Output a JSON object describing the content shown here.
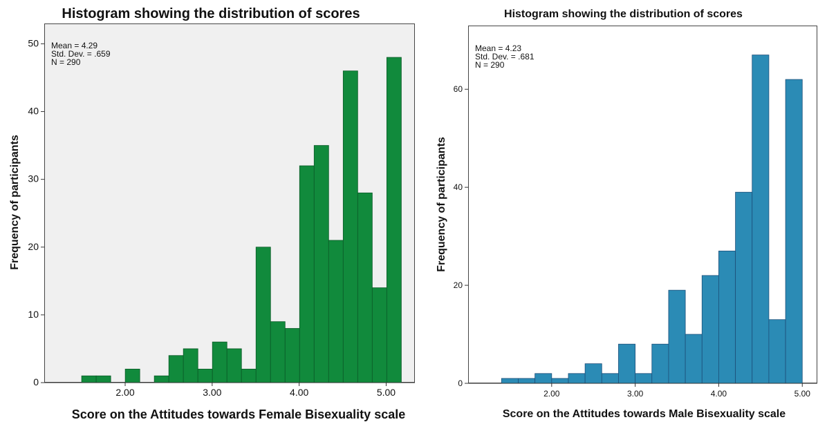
{
  "charts": [
    {
      "title": "Histogram showing the distribution of scores",
      "stats": [
        "Mean = 4.29",
        "Std. Dev. = .659",
        "N = 290"
      ],
      "xlabel": "Score on the Attitudes towards Female Bisexuality scale",
      "ylabel": "Frequency of participants",
      "bar_color": "#118a3c",
      "background": "#f0f0f0"
    },
    {
      "title": "Histogram showing the distribution of scores",
      "stats": [
        "Mean = 4.23",
        "Std. Dev. = .681",
        "N = 290"
      ],
      "xlabel": "Score on the Attitudes towards Male Bisexuality scale",
      "ylabel": "Frequency of participants",
      "bar_color": "#2b8bb5",
      "background": "#ffffff"
    }
  ],
  "chart_data": [
    {
      "type": "bar",
      "title": "Histogram showing the distribution of scores",
      "xlabel": "Score on the Attitudes towards Female Bisexuality scale",
      "ylabel": "Frequency of participants",
      "bin_width": 0.167,
      "bin_start": 1.5,
      "values": [
        1,
        1,
        0,
        2,
        0,
        1,
        4,
        5,
        2,
        6,
        5,
        2,
        20,
        9,
        8,
        32,
        35,
        21,
        46,
        28,
        14,
        48
      ],
      "xlim": [
        1.07,
        5.33
      ],
      "ylim": [
        0,
        53
      ],
      "xticks": [
        "2.00",
        "3.00",
        "4.00",
        "5.00"
      ],
      "yticks": [
        "0",
        "10",
        "20",
        "30",
        "40",
        "50"
      ],
      "grid": false
    },
    {
      "type": "bar",
      "title": "Histogram showing the distribution of scores",
      "xlabel": "Score on the Attitudes towards Male Bisexuality scale",
      "ylabel": "Frequency of participants",
      "bin_width": 0.2,
      "bin_start": 1.4,
      "values": [
        1,
        1,
        2,
        1,
        2,
        4,
        2,
        8,
        2,
        8,
        19,
        10,
        22,
        27,
        39,
        67,
        13,
        62
      ],
      "xlim": [
        1.0,
        5.18
      ],
      "ylim": [
        0,
        73
      ],
      "xticks": [
        "2.00",
        "3.00",
        "4.00",
        "5.00"
      ],
      "yticks": [
        "0",
        "20",
        "40",
        "60"
      ],
      "grid": false
    }
  ]
}
